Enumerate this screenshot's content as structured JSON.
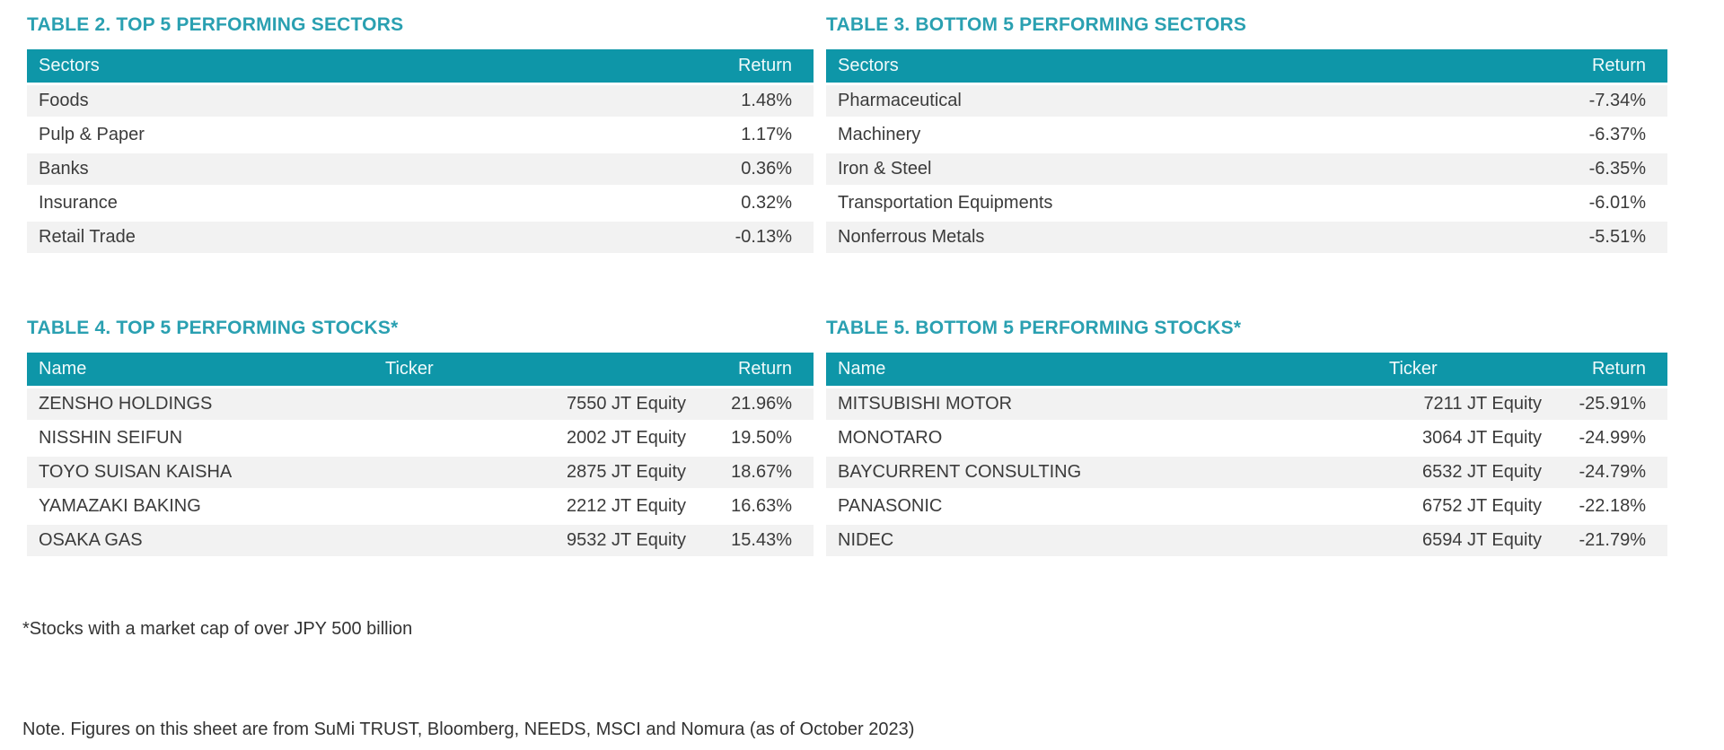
{
  "tables": {
    "top_sectors": {
      "title": "TABLE 2. TOP 5 PERFORMING SECTORS",
      "columns": [
        "Sectors",
        "Return"
      ],
      "rows": [
        {
          "name": "Foods",
          "return": "1.48%"
        },
        {
          "name": "Pulp & Paper",
          "return": "1.17%"
        },
        {
          "name": "Banks",
          "return": "0.36%"
        },
        {
          "name": "Insurance",
          "return": "0.32%"
        },
        {
          "name": "Retail Trade",
          "return": "-0.13%"
        }
      ]
    },
    "bottom_sectors": {
      "title": "TABLE 3. BOTTOM 5 PERFORMING SECTORS",
      "columns": [
        "Sectors",
        "Return"
      ],
      "rows": [
        {
          "name": "Pharmaceutical",
          "return": "-7.34%"
        },
        {
          "name": "Machinery",
          "return": "-6.37%"
        },
        {
          "name": "Iron & Steel",
          "return": "-6.35%"
        },
        {
          "name": "Transportation Equipments",
          "return": "-6.01%"
        },
        {
          "name": "Nonferrous Metals",
          "return": "-5.51%"
        }
      ]
    },
    "top_stocks": {
      "title": "TABLE 4. TOP 5 PERFORMING STOCKS*",
      "columns": [
        "Name",
        "Ticker",
        "Return"
      ],
      "rows": [
        {
          "name": "ZENSHO HOLDINGS",
          "ticker": "7550 JT Equity",
          "return": "21.96%"
        },
        {
          "name": "NISSHIN SEIFUN",
          "ticker": "2002 JT Equity",
          "return": "19.50%"
        },
        {
          "name": "TOYO SUISAN KAISHA",
          "ticker": "2875 JT Equity",
          "return": "18.67%"
        },
        {
          "name": "YAMAZAKI BAKING",
          "ticker": "2212 JT Equity",
          "return": "16.63%"
        },
        {
          "name": "OSAKA GAS",
          "ticker": "9532 JT Equity",
          "return": "15.43%"
        }
      ]
    },
    "bottom_stocks": {
      "title": "TABLE 5. BOTTOM 5 PERFORMING STOCKS*",
      "columns": [
        "Name",
        "Ticker",
        "Return"
      ],
      "rows": [
        {
          "name": "MITSUBISHI MOTOR",
          "ticker": "7211 JT Equity",
          "return": "-25.91%"
        },
        {
          "name": "MONOTARO",
          "ticker": "3064 JT Equity",
          "return": "-24.99%"
        },
        {
          "name": "BAYCURRENT CONSULTING",
          "ticker": "6532 JT Equity",
          "return": "-24.79%"
        },
        {
          "name": "PANASONIC",
          "ticker": "6752 JT Equity",
          "return": "-22.18%"
        },
        {
          "name": "NIDEC",
          "ticker": "6594 JT Equity",
          "return": "-21.79%"
        }
      ]
    }
  },
  "footnotes": {
    "market_cap": "*Stocks with a market cap of over JPY 500 billion",
    "source": "Note. Figures on this sheet are from SuMi TRUST, Bloomberg, NEEDS, MSCI and Nomura (as of October 2023)"
  },
  "colors": {
    "header_bg": "#0E96A8",
    "title_text": "#2AA0B1",
    "row_alt_bg": "#F2F2F2",
    "body_text": "#3B3B3B"
  }
}
